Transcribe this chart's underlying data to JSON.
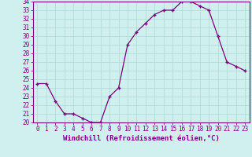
{
  "x": [
    0,
    1,
    2,
    3,
    4,
    5,
    6,
    7,
    8,
    9,
    10,
    11,
    12,
    13,
    14,
    15,
    16,
    17,
    18,
    19,
    20,
    21,
    22,
    23
  ],
  "y": [
    24.5,
    24.5,
    22.5,
    21.0,
    21.0,
    20.5,
    20.0,
    20.0,
    23.0,
    24.0,
    29.0,
    30.5,
    31.5,
    32.5,
    33.0,
    33.0,
    34.0,
    34.0,
    33.5,
    33.0,
    30.0,
    27.0,
    26.5,
    26.0
  ],
  "line_color": "#7b007b",
  "marker": "+",
  "marker_color": "#7b007b",
  "bg_color": "#cff0ee",
  "grid_color": "#b0d8d5",
  "xlabel": "Windchill (Refroidissement éolien,°C)",
  "ylim": [
    20,
    34
  ],
  "xlim": [
    -0.5,
    23.5
  ],
  "yticks": [
    20,
    21,
    22,
    23,
    24,
    25,
    26,
    27,
    28,
    29,
    30,
    31,
    32,
    33,
    34
  ],
  "xticks": [
    0,
    1,
    2,
    3,
    4,
    5,
    6,
    7,
    8,
    9,
    10,
    11,
    12,
    13,
    14,
    15,
    16,
    17,
    18,
    19,
    20,
    21,
    22,
    23
  ],
  "tick_label_color": "#7b007b",
  "axis_color": "#7b007b",
  "xlabel_fontsize": 6.5,
  "tick_fontsize": 5.5,
  "linewidth": 0.9,
  "markersize": 3.0
}
